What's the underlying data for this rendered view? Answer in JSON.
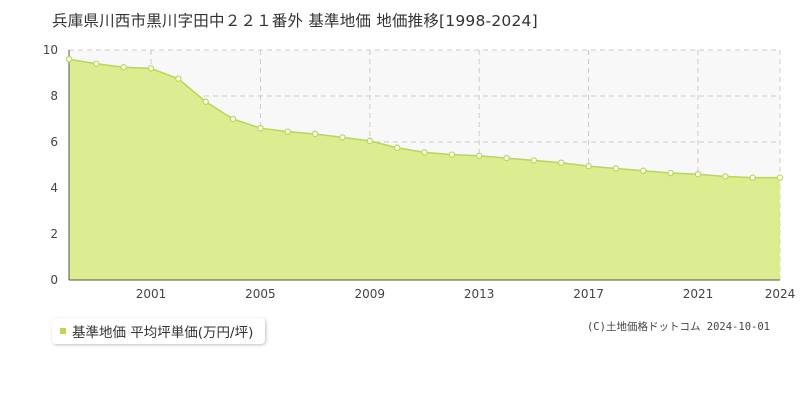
{
  "chart_data": {
    "type": "area",
    "title": "兵庫県川西市黒川字田中２２１番外 基準地価 地価推移[1998-2024]",
    "xlabel": "",
    "ylabel": "",
    "x": [
      1998,
      1999,
      2000,
      2001,
      2002,
      2003,
      2004,
      2005,
      2006,
      2007,
      2008,
      2009,
      2010,
      2011,
      2012,
      2013,
      2014,
      2015,
      2016,
      2017,
      2018,
      2019,
      2020,
      2021,
      2022,
      2023,
      2024
    ],
    "series": [
      {
        "name": "基準地価 平均坪単価(万円/坪)",
        "values": [
          9.6,
          9.4,
          9.25,
          9.2,
          8.75,
          7.75,
          7.0,
          6.6,
          6.45,
          6.35,
          6.2,
          6.05,
          5.75,
          5.55,
          5.45,
          5.4,
          5.3,
          5.2,
          5.1,
          4.95,
          4.85,
          4.75,
          4.65,
          4.6,
          4.5,
          4.45,
          4.45
        ],
        "color": "#b8d94a",
        "fill": "#dcec91"
      }
    ],
    "xlim": [
      1998,
      2024
    ],
    "ylim": [
      0,
      10
    ],
    "x_ticks": [
      2001,
      2005,
      2009,
      2013,
      2017,
      2021,
      2024
    ],
    "y_ticks": [
      0,
      2,
      4,
      6,
      8,
      10
    ],
    "grid": true,
    "legend_position": "bottom-left"
  },
  "legend": {
    "label": "基準地価 平均坪単価(万円/坪)"
  },
  "credit": "(C)土地価格ドットコム 2024-10-01"
}
